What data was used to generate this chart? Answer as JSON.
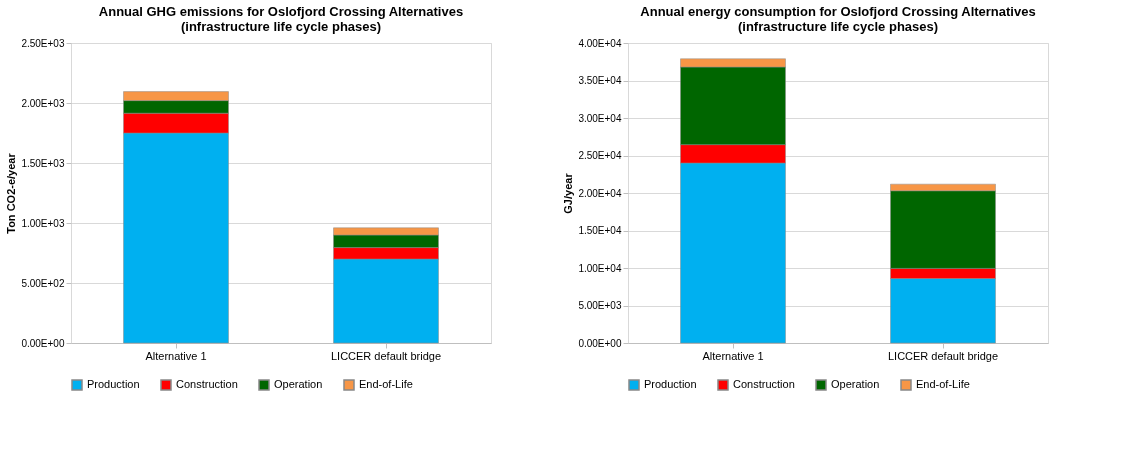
{
  "chart_data": [
    {
      "type": "bar",
      "stacked": true,
      "title": "Annual GHG emissions for Oslofjord Crossing Alternatives\n(infrastructure life cycle phases)",
      "ylabel": "Ton CO2-e/year",
      "categories": [
        "Alternative 1",
        "LICCER default bridge"
      ],
      "series": [
        {
          "name": "Production",
          "color": "#00b0f0",
          "values": [
            1750,
            700
          ]
        },
        {
          "name": "Construction",
          "color": "#ff0000",
          "values": [
            165,
            95
          ]
        },
        {
          "name": "Operation",
          "color": "#006600",
          "values": [
            105,
            105
          ]
        },
        {
          "name": "End-of-Life",
          "color": "#f79646",
          "values": [
            75,
            60
          ]
        }
      ],
      "ylim": [
        0,
        2500
      ],
      "yticks": [
        {
          "value": 0,
          "label": "0.00E+00"
        },
        {
          "value": 500,
          "label": "5.00E+02"
        },
        {
          "value": 1000,
          "label": "1.00E+03"
        },
        {
          "value": 1500,
          "label": "1.50E+03"
        },
        {
          "value": 2000,
          "label": "2.00E+03"
        },
        {
          "value": 2500,
          "label": "2.50E+03"
        }
      ],
      "grid": "y",
      "legend": "bottom"
    },
    {
      "type": "bar",
      "stacked": true,
      "title": "Annual energy consumption for Oslofjord Crossing Alternatives\n(infrastructure life cycle phases)",
      "ylabel": "GJ/year",
      "categories": [
        "Alternative 1",
        "LICCER default bridge"
      ],
      "series": [
        {
          "name": "Production",
          "color": "#00b0f0",
          "values": [
            24000,
            8600
          ]
        },
        {
          "name": "Construction",
          "color": "#ff0000",
          "values": [
            2450,
            1350
          ]
        },
        {
          "name": "Operation",
          "color": "#006600",
          "values": [
            10350,
            10350
          ]
        },
        {
          "name": "End-of-Life",
          "color": "#f79646",
          "values": [
            1100,
            880
          ]
        }
      ],
      "ylim": [
        0,
        40000
      ],
      "yticks": [
        {
          "value": 0,
          "label": "0.00E+00"
        },
        {
          "value": 5000,
          "label": "5.00E+03"
        },
        {
          "value": 10000,
          "label": "1.00E+04"
        },
        {
          "value": 15000,
          "label": "1.50E+04"
        },
        {
          "value": 20000,
          "label": "2.00E+04"
        },
        {
          "value": 25000,
          "label": "2.50E+04"
        },
        {
          "value": 30000,
          "label": "3.00E+04"
        },
        {
          "value": 35000,
          "label": "3.50E+04"
        },
        {
          "value": 40000,
          "label": "4.00E+04"
        }
      ],
      "grid": "y",
      "legend": "bottom"
    }
  ]
}
